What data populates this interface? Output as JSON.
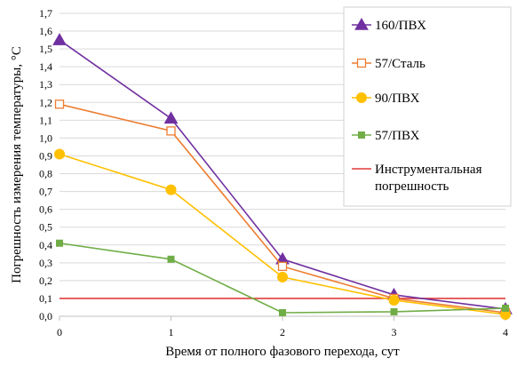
{
  "chart_data": {
    "type": "line",
    "title": "",
    "xlabel": "Время от полного фазового перехода, сут",
    "ylabel": "Погрешность измерения температуры, °С",
    "xlim": [
      0,
      4
    ],
    "ylim": [
      0,
      1.7
    ],
    "x_ticks": [
      "0",
      "1",
      "2",
      "3",
      "4"
    ],
    "y_ticks": [
      "0,0",
      "0,1",
      "0,2",
      "0,3",
      "0,4",
      "0,5",
      "0,6",
      "0,7",
      "0,8",
      "0,9",
      "1,0",
      "1,1",
      "1,2",
      "1,3",
      "1,4",
      "1,5",
      "1,6",
      "1,7"
    ],
    "grid": "horizontal",
    "legend_position": "right",
    "x": [
      0,
      1,
      2,
      3,
      4
    ],
    "series": [
      {
        "name": "160/ПВХ",
        "values": [
          1.55,
          1.11,
          0.32,
          0.12,
          0.04
        ],
        "color": "#7030a0",
        "marker": "triangle"
      },
      {
        "name": "57/Сталь",
        "values": [
          1.19,
          1.04,
          0.28,
          0.1,
          0.02
        ],
        "color": "#ed7d31",
        "marker": "square-open"
      },
      {
        "name": "90/ПВХ",
        "values": [
          0.91,
          0.71,
          0.22,
          0.09,
          0.01
        ],
        "color": "#ffc000",
        "marker": "circle"
      },
      {
        "name": "57/ПВХ",
        "values": [
          0.41,
          0.32,
          0.02,
          0.025,
          0.045
        ],
        "color": "#70ad47",
        "marker": "square"
      },
      {
        "name": "Инструментальная погрешность",
        "legend_lines": [
          "Инструментальная",
          "погрешность"
        ],
        "values": [
          0.1,
          0.1,
          0.1,
          0.1,
          0.1
        ],
        "color": "#e03c3c",
        "marker": "none"
      }
    ]
  }
}
